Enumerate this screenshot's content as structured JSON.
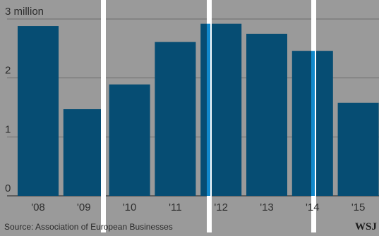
{
  "chart_data": {
    "type": "bar",
    "categories": [
      "'08",
      "'09",
      "'10",
      "'11",
      "'12",
      "'13",
      "'14",
      "'15"
    ],
    "values": [
      2.88,
      1.47,
      1.89,
      2.61,
      2.92,
      2.75,
      2.46,
      1.58
    ],
    "ylim": [
      0,
      3
    ],
    "y_ticks": [
      0,
      1,
      2,
      3
    ],
    "y_tick_labels": [
      "0",
      "1",
      "2",
      "3 million"
    ],
    "title": "",
    "xlabel": "",
    "ylabel": "",
    "grid": true,
    "legend": "none",
    "colors": {
      "bar": "#064d73",
      "background": "#9a9a9a",
      "overlay": "#ffffff",
      "highlight": "#1189cc"
    }
  },
  "footer": {
    "source": "Source: Association of European Businesses",
    "brand": "WSJ"
  }
}
